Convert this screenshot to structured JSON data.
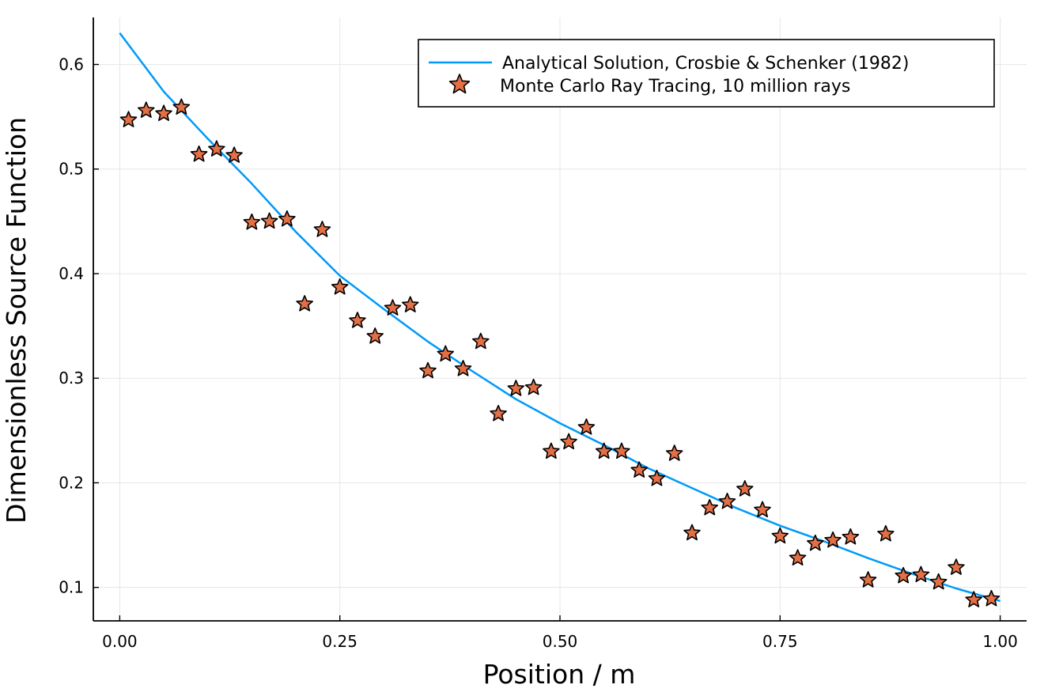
{
  "chart_data": {
    "type": "scatter",
    "title": "",
    "xlabel": "Position / m",
    "ylabel": "Dimensionless Source Function",
    "xlim": [
      -0.03,
      1.03
    ],
    "ylim": [
      0.068,
      0.645
    ],
    "grid": true,
    "legend_position": "top-right",
    "xticks": [
      {
        "value": 0.0,
        "label": "0.00"
      },
      {
        "value": 0.25,
        "label": "0.25"
      },
      {
        "value": 0.5,
        "label": "0.50"
      },
      {
        "value": 0.75,
        "label": "0.75"
      },
      {
        "value": 1.0,
        "label": "1.00"
      }
    ],
    "yticks": [
      {
        "value": 0.1,
        "label": "0.1"
      },
      {
        "value": 0.2,
        "label": "0.2"
      },
      {
        "value": 0.3,
        "label": "0.3"
      },
      {
        "value": 0.4,
        "label": "0.4"
      },
      {
        "value": 0.5,
        "label": "0.5"
      },
      {
        "value": 0.6,
        "label": "0.6"
      }
    ],
    "series": [
      {
        "name": "Analytical Solution, Crosbie & Schenker (1982)",
        "kind": "line",
        "color": "#009af9",
        "x": [
          0.0,
          0.05,
          0.1,
          0.15,
          0.2,
          0.25,
          0.3,
          0.35,
          0.4,
          0.45,
          0.5,
          0.55,
          0.6,
          0.65,
          0.7,
          0.75,
          0.8,
          0.85,
          0.9,
          0.95,
          1.0
        ],
        "y": [
          0.63,
          0.574,
          0.529,
          0.486,
          0.44,
          0.398,
          0.366,
          0.335,
          0.307,
          0.28,
          0.257,
          0.236,
          0.214,
          0.195,
          0.176,
          0.159,
          0.144,
          0.128,
          0.113,
          0.099,
          0.087
        ]
      },
      {
        "name": "Monte Carlo Ray Tracing, 10 million rays",
        "kind": "scatter",
        "marker": "star",
        "color": "#e26f46",
        "x": [
          0.01,
          0.03,
          0.05,
          0.07,
          0.09,
          0.11,
          0.13,
          0.15,
          0.17,
          0.19,
          0.21,
          0.23,
          0.25,
          0.27,
          0.29,
          0.31,
          0.33,
          0.35,
          0.37,
          0.39,
          0.41,
          0.43,
          0.45,
          0.47,
          0.49,
          0.51,
          0.53,
          0.55,
          0.57,
          0.59,
          0.61,
          0.63,
          0.65,
          0.67,
          0.69,
          0.71,
          0.73,
          0.75,
          0.77,
          0.79,
          0.81,
          0.83,
          0.85,
          0.87,
          0.89,
          0.91,
          0.93,
          0.95,
          0.97,
          0.99
        ],
        "y": [
          0.547,
          0.556,
          0.553,
          0.559,
          0.514,
          0.519,
          0.513,
          0.449,
          0.45,
          0.452,
          0.371,
          0.442,
          0.387,
          0.355,
          0.34,
          0.367,
          0.37,
          0.307,
          0.323,
          0.309,
          0.335,
          0.266,
          0.29,
          0.291,
          0.23,
          0.239,
          0.253,
          0.23,
          0.23,
          0.212,
          0.204,
          0.228,
          0.152,
          0.176,
          0.182,
          0.194,
          0.174,
          0.149,
          0.128,
          0.142,
          0.145,
          0.148,
          0.107,
          0.151,
          0.111,
          0.112,
          0.105,
          0.119,
          0.088,
          0.089
        ]
      }
    ]
  }
}
